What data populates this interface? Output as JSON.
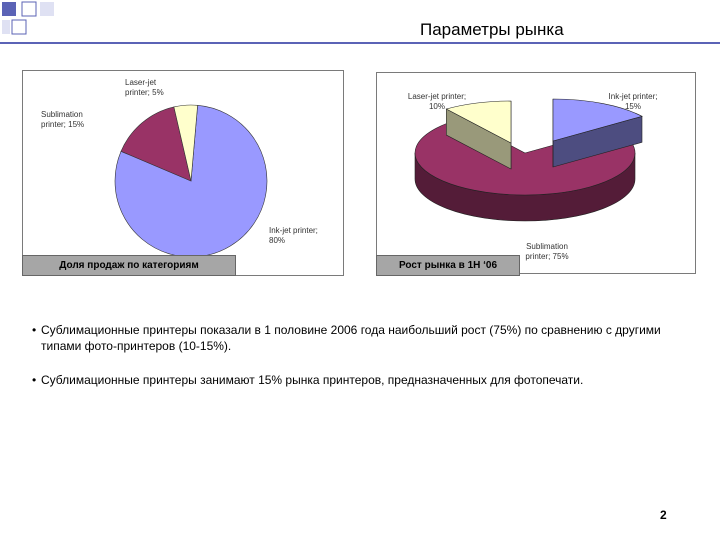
{
  "slide": {
    "title": "Параметры рынка",
    "page_number": "2",
    "accent_color": "#5b63b6"
  },
  "captions": {
    "share": "Доля продаж по категориям",
    "growth": "Рост рынка в 1H ‘06"
  },
  "bullets": [
    "Сублимационные принтеры показали в 1 половине 2006 года наибольший рост (75%) по сравнению с другими типами фото-принтеров (10-15%).",
    "Сублимационные принтеры занимают 15% рынка принтеров, предназначенных для фотопечати."
  ],
  "chart_data": [
    {
      "type": "pie",
      "title": "",
      "slices": [
        {
          "label_lines": [
            "Ink-jet printer;",
            "80%"
          ],
          "value": 80,
          "color": "#9999ff"
        },
        {
          "label_lines": [
            "Sublimation",
            "printer; 15%"
          ],
          "value": 15,
          "color": "#993366"
        },
        {
          "label_lines": [
            "Laser-jet",
            "printer; 5%"
          ],
          "value": 5,
          "color": "#ffffcc"
        }
      ]
    },
    {
      "type": "pie",
      "title": "",
      "style": "3d-exploded",
      "slices": [
        {
          "label_lines": [
            "Ink-jet printer;",
            "15%"
          ],
          "value": 15,
          "color": "#9999ff"
        },
        {
          "label_lines": [
            "Sublimation",
            "printer; 75%"
          ],
          "value": 75,
          "color": "#993366"
        },
        {
          "label_lines": [
            "Laser-jet printer;",
            "10%"
          ],
          "value": 10,
          "color": "#ffffcc"
        }
      ]
    }
  ]
}
